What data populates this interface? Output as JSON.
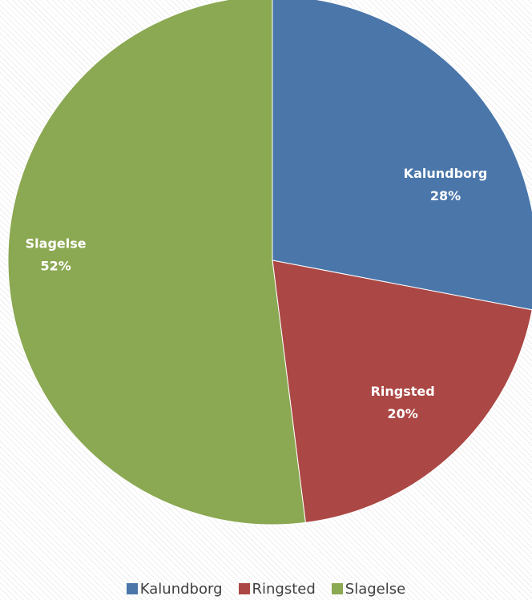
{
  "chart_data": {
    "type": "pie",
    "title": "",
    "categories": [
      "Kalundborg",
      "Ringsted",
      "Slagelse"
    ],
    "values": [
      28,
      20,
      52
    ],
    "value_labels": [
      "28%",
      "20%",
      "52%"
    ],
    "colors": [
      "#4A76AA",
      "#AB4744",
      "#8BA852"
    ],
    "legend_position": "bottom",
    "start_angle_deg": 0,
    "direction": "clockwise"
  },
  "legend": {
    "items": [
      {
        "label": "Kalundborg",
        "color": "#4A76AA"
      },
      {
        "label": "Ringsted",
        "color": "#AB4744"
      },
      {
        "label": "Slagelse",
        "color": "#8BA852"
      }
    ]
  }
}
